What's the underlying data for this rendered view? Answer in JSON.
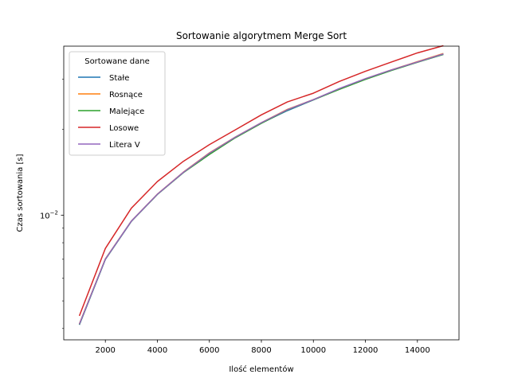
{
  "chart_data": {
    "type": "line",
    "title": "Sortowanie algorytmem Merge Sort",
    "xlabel": "Ilość elementów",
    "ylabel": "Czas sortowania [s]",
    "xlim": [
      400,
      15600
    ],
    "ylim": [
      0.00365,
      0.0392
    ],
    "yscale": "log",
    "grid": false,
    "legend_title": "Sortowane dane",
    "legend_position": "upper-left",
    "x_ticks": [
      2000,
      4000,
      6000,
      8000,
      10000,
      12000,
      14000
    ],
    "x_tick_labels": [
      "2000",
      "4000",
      "6000",
      "8000",
      "10000",
      "12000",
      "14000"
    ],
    "y_ticks": [
      0.01
    ],
    "y_tick_labels": [
      "10−2"
    ],
    "x": [
      1000,
      2000,
      3000,
      4000,
      5000,
      6000,
      7000,
      8000,
      9000,
      10000,
      11000,
      12000,
      13000,
      14000,
      15000
    ],
    "series": [
      {
        "name": "Stałe",
        "color": "#1f77b4",
        "values": [
          0.00412,
          0.00699,
          0.00951,
          0.01183,
          0.01411,
          0.01645,
          0.01875,
          0.02105,
          0.02328,
          0.02538,
          0.02772,
          0.03005,
          0.03224,
          0.03445,
          0.03665
        ]
      },
      {
        "name": "Rosnące",
        "color": "#ff7f0e",
        "values": [
          0.00415,
          0.00702,
          0.00953,
          0.01185,
          0.01416,
          0.01654,
          0.01881,
          0.02112,
          0.02352,
          0.02545,
          0.02778,
          0.03012,
          0.03235,
          0.03458,
          0.03695
        ]
      },
      {
        "name": "Malejące",
        "color": "#2ca02c",
        "values": [
          0.00413,
          0.007,
          0.00952,
          0.01182,
          0.0141,
          0.01633,
          0.0187,
          0.021,
          0.0234,
          0.0254,
          0.02765,
          0.02995,
          0.0322,
          0.0344,
          0.0367
        ]
      },
      {
        "name": "Losowe",
        "color": "#d62728",
        "values": [
          0.00443,
          0.00764,
          0.01058,
          0.01312,
          0.01545,
          0.01768,
          0.01993,
          0.0225,
          0.02498,
          0.0268,
          0.02948,
          0.032,
          0.03448,
          0.03712,
          0.03935
        ]
      },
      {
        "name": "Litera V",
        "color": "#9467bd",
        "values": [
          0.00414,
          0.00701,
          0.00953,
          0.01184,
          0.01414,
          0.0165,
          0.0188,
          0.02112,
          0.02345,
          0.02545,
          0.02785,
          0.03015,
          0.03235,
          0.0345,
          0.03682
        ]
      }
    ]
  }
}
